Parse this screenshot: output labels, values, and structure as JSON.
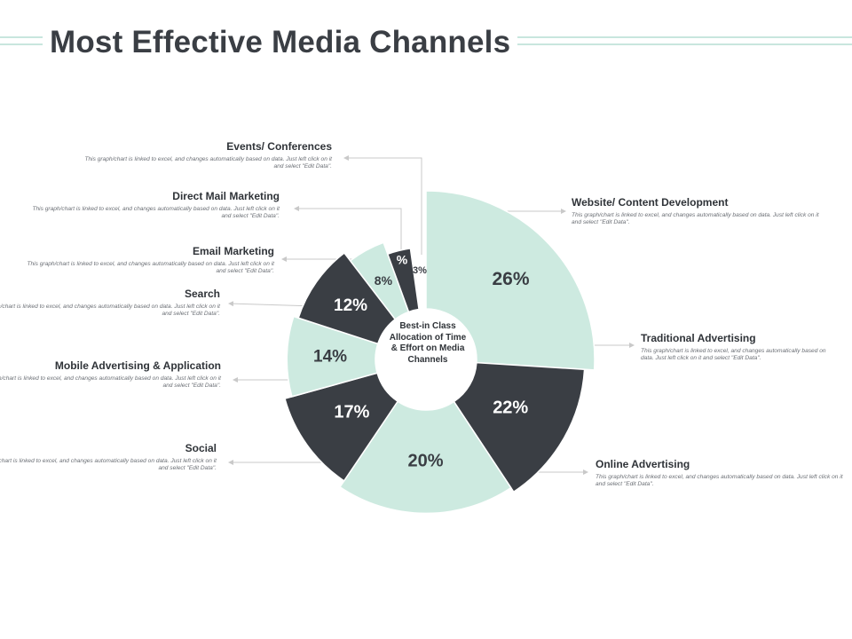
{
  "title": "Most Effective Media Channels",
  "center_label": "Best-in Class Allocation of Time & Effort on Media Channels",
  "description": "This graph/chart is linked to excel, and changes automatically based on data. Just left click on it and select \"Edit Data\".",
  "colors": {
    "light": "#cdeae0",
    "dark": "#3a3e44",
    "title": "#3a3e44",
    "band": "#c8e6de",
    "leader": "#c9c9c9"
  },
  "chart_data": {
    "type": "pie",
    "style": "rose-donut",
    "categories": [
      "Website/ Content Development",
      "Traditional Advertising",
      "Online Advertising",
      "Social",
      "Mobile Advertising & Application",
      "Search",
      "Email Marketing",
      "Direct Mail Marketing",
      "Events/ Conferences"
    ],
    "values": [
      26,
      22,
      20,
      17,
      14,
      12,
      8,
      3,
      null
    ],
    "value_labels": [
      "26%",
      "22%",
      "20%",
      "17%",
      "14%",
      "12%",
      "8%",
      "3%",
      "%"
    ],
    "fill": [
      "light",
      "dark",
      "light",
      "dark",
      "light",
      "dark",
      "light",
      "dark",
      "none"
    ]
  }
}
